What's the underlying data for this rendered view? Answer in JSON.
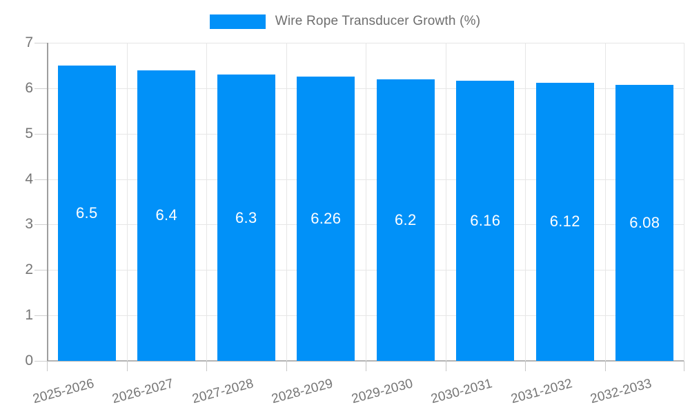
{
  "legend": {
    "label": "Wire Rope Transducer Growth (%)"
  },
  "colors": {
    "bar": "#0191f8",
    "bar_value_text": "#ffffff",
    "axis_text": "#757575",
    "legend_text": "#6e6e6e",
    "gridline": "#e6e6e6",
    "axis_line": "#9e9e9e",
    "baseline": "#b3b3b3"
  },
  "chart_data": {
    "type": "bar",
    "title": "Wire Rope Transducer Growth (%)",
    "categories": [
      "2025-2026",
      "2026-2027",
      "2027-2028",
      "2028-2029",
      "2029-2030",
      "2030-2031",
      "2031-2032",
      "2032-2033"
    ],
    "values": [
      6.5,
      6.4,
      6.3,
      6.26,
      6.2,
      6.16,
      6.12,
      6.08
    ],
    "value_labels": [
      "6.5",
      "6.4",
      "6.3",
      "6.26",
      "6.2",
      "6.16",
      "6.12",
      "6.08"
    ],
    "xlabel": "",
    "ylabel": "",
    "ylim": [
      0,
      7
    ],
    "yticks": [
      0,
      1,
      2,
      3,
      4,
      5,
      6,
      7
    ],
    "grid": true,
    "legend_position": "top",
    "x_label_rotation_deg": -15
  }
}
